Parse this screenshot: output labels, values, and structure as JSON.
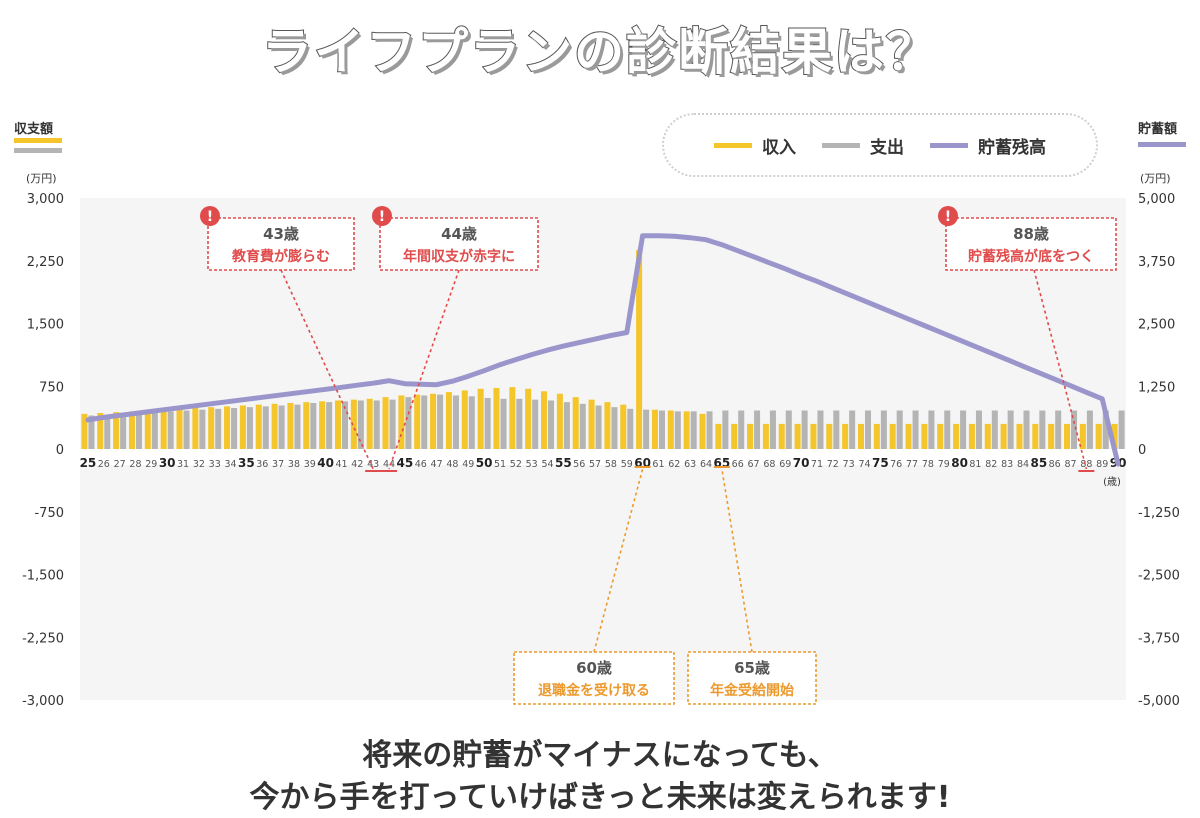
{
  "page": {
    "title": "ライフプランの診断結果は？",
    "left_axis_title": "収支額",
    "right_axis_title": "貯蓄額",
    "left_unit": "(万円)",
    "right_unit": "(万円)",
    "age_unit": "(歳)",
    "footer_line1": "将来の貯蓄がマイナスになっても、",
    "footer_line2": "今から手を打っていけばきっと未来は変えられます!"
  },
  "legend": [
    {
      "label": "収入",
      "color": "#f5c52c"
    },
    {
      "label": "支出",
      "color": "#b4b4b4"
    },
    {
      "label": "貯蓄残高",
      "color": "#9a96cc"
    }
  ],
  "colors": {
    "income": "#f5c52c",
    "expense": "#b4b4b4",
    "savings": "#9a96cc",
    "plot_bg": "#f5f5f5",
    "red": "#e04b4b",
    "orange": "#ec9a2e"
  },
  "chart_data": {
    "type": "bar",
    "categories": [
      25,
      26,
      27,
      28,
      29,
      30,
      31,
      32,
      33,
      34,
      35,
      36,
      37,
      38,
      39,
      40,
      41,
      42,
      43,
      44,
      45,
      46,
      47,
      48,
      49,
      50,
      51,
      52,
      53,
      54,
      55,
      56,
      57,
      58,
      59,
      60,
      61,
      62,
      63,
      64,
      65,
      66,
      67,
      68,
      69,
      70,
      71,
      72,
      73,
      74,
      75,
      76,
      77,
      78,
      79,
      80,
      81,
      82,
      83,
      84,
      85,
      86,
      87,
      88,
      89,
      90
    ],
    "bold_ticks": [
      25,
      30,
      35,
      40,
      45,
      50,
      55,
      60,
      65,
      70,
      75,
      80,
      85,
      90
    ],
    "y_left": {
      "ticks": [
        "3,000",
        "2,250",
        "1,500",
        "750",
        "0",
        "-750",
        "-1,500",
        "-2,250",
        "-3,000"
      ],
      "ylim": [
        -3000,
        3000
      ]
    },
    "y_right": {
      "ticks": [
        "5,000",
        "3,750",
        "2,500",
        "1,250",
        "0",
        "-1,250",
        "-2,500",
        "-3,750",
        "-5,000"
      ],
      "ylim": [
        -5000,
        5000
      ]
    },
    "series": [
      {
        "name": "収入",
        "axis": "left",
        "values": [
          420,
          430,
          440,
          450,
          460,
          470,
          480,
          490,
          500,
          510,
          520,
          530,
          540,
          550,
          560,
          570,
          580,
          590,
          600,
          620,
          640,
          650,
          660,
          680,
          700,
          720,
          730,
          740,
          720,
          690,
          660,
          620,
          590,
          560,
          530,
          2380,
          470,
          460,
          450,
          420,
          300,
          300,
          300,
          300,
          300,
          300,
          300,
          300,
          300,
          300,
          300,
          300,
          300,
          300,
          300,
          300,
          300,
          300,
          300,
          300,
          300,
          300,
          300,
          300,
          300,
          300
        ]
      },
      {
        "name": "支出",
        "axis": "left",
        "values": [
          400,
          410,
          420,
          430,
          440,
          450,
          460,
          470,
          480,
          490,
          500,
          510,
          520,
          530,
          550,
          560,
          570,
          580,
          580,
          590,
          620,
          640,
          650,
          640,
          630,
          610,
          600,
          600,
          590,
          580,
          560,
          540,
          520,
          500,
          480,
          470,
          460,
          450,
          450,
          450,
          460,
          460,
          460,
          460,
          460,
          460,
          460,
          460,
          460,
          460,
          460,
          460,
          460,
          460,
          460,
          460,
          460,
          460,
          460,
          460,
          460,
          460,
          460,
          460,
          460,
          460
        ]
      },
      {
        "name": "貯蓄残高",
        "axis": "right",
        "type": "line",
        "values": [
          580,
          630,
          670,
          710,
          750,
          790,
          830,
          870,
          910,
          950,
          990,
          1030,
          1070,
          1110,
          1150,
          1190,
          1230,
          1270,
          1310,
          1360,
          1300,
          1290,
          1280,
          1350,
          1450,
          1560,
          1680,
          1780,
          1880,
          1970,
          2050,
          2120,
          2190,
          2260,
          2320,
          4250,
          4250,
          4240,
          4210,
          4170,
          4070,
          3950,
          3830,
          3710,
          3590,
          3460,
          3340,
          3210,
          3080,
          2950,
          2820,
          2690,
          2560,
          2430,
          2300,
          2170,
          2040,
          1910,
          1780,
          1650,
          1520,
          1390,
          1260,
          1130,
          1000,
          -300
        ]
      }
    ],
    "annotations": [
      {
        "age_label": "43歳",
        "text": "教育費が膨らむ",
        "color": "red",
        "at_age": 43
      },
      {
        "age_label": "44歳",
        "text": "年間収支が赤字に",
        "color": "red",
        "at_age": 44
      },
      {
        "age_label": "88歳",
        "text": "貯蓄残高が底をつく",
        "color": "red",
        "at_age": 88
      },
      {
        "age_label": "60歳",
        "text": "退職金を受け取る",
        "color": "orange",
        "at_age": 60
      },
      {
        "age_label": "65歳",
        "text": "年金受給開始",
        "color": "orange",
        "at_age": 65
      }
    ]
  }
}
